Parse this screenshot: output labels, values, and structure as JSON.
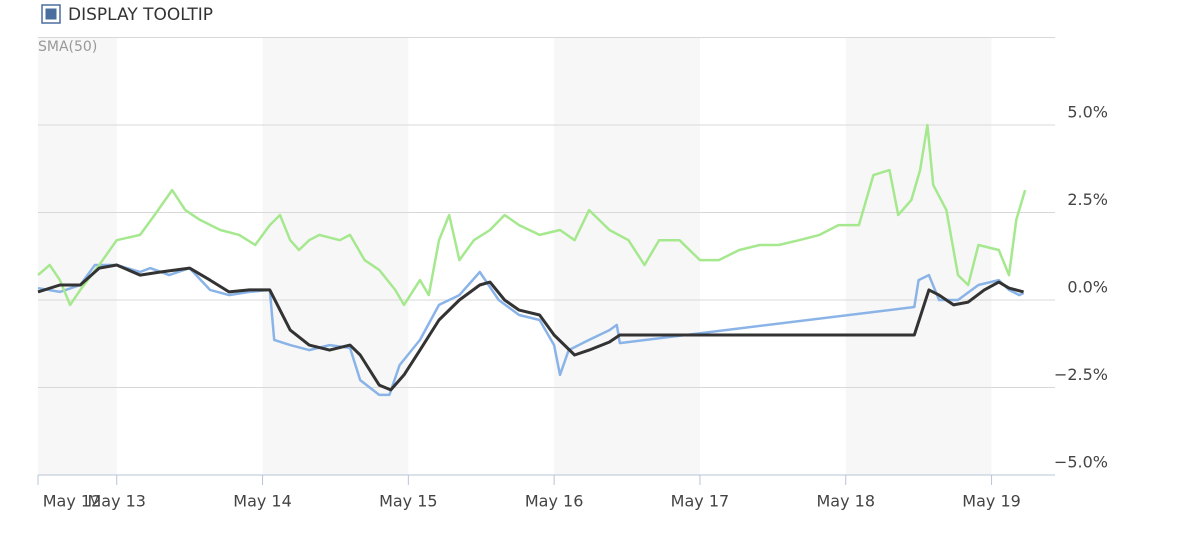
{
  "toolbar": {
    "checkbox_label": "DISPLAY TOOLTIP"
  },
  "chart_data": {
    "type": "line",
    "subtitle": "SMA(50)",
    "xlim": [
      12.46,
      19.25
    ],
    "xticks": [
      {
        "value": 12.46,
        "label": "May 12"
      },
      {
        "value": 13,
        "label": "May 13"
      },
      {
        "value": 14,
        "label": "May 14"
      },
      {
        "value": 15,
        "label": "May 15"
      },
      {
        "value": 16,
        "label": "May 16"
      },
      {
        "value": 17,
        "label": "May 17"
      },
      {
        "value": 18,
        "label": "May 18"
      },
      {
        "value": 19,
        "label": "May 19"
      }
    ],
    "ylim": [
      -5,
      7.5
    ],
    "yticks": [
      {
        "value": -5,
        "label": "−5.0%"
      },
      {
        "value": -2.5,
        "label": "−2.5%"
      },
      {
        "value": 0,
        "label": "0.0%"
      },
      {
        "value": 2.5,
        "label": "2.5%"
      },
      {
        "value": 5,
        "label": "5.0%"
      }
    ],
    "grid": true,
    "series": [
      {
        "color": "#8ab4e8",
        "x": [
          12.46,
          12.61,
          12.75,
          12.85,
          13.0,
          13.16,
          13.23,
          13.36,
          13.5,
          13.64,
          13.77,
          13.91,
          14.05,
          14.08,
          14.19,
          14.32,
          14.46,
          14.6,
          14.67,
          14.8,
          14.87,
          14.94,
          15.08,
          15.21,
          15.35,
          15.49,
          15.62,
          15.76,
          15.9,
          16.0,
          16.04,
          16.1,
          16.24,
          16.38,
          16.43,
          16.45,
          18.47,
          18.5,
          18.57,
          18.64,
          18.77,
          18.91,
          19.05,
          19.12,
          19.19,
          19.22
        ],
        "values": [
          0.34,
          0.23,
          0.43,
          1.0,
          1.0,
          0.8,
          0.91,
          0.71,
          0.91,
          0.29,
          0.14,
          0.23,
          0.29,
          -1.14,
          -1.29,
          -1.43,
          -1.29,
          -1.37,
          -2.29,
          -2.71,
          -2.71,
          -1.86,
          -1.14,
          -0.14,
          0.14,
          0.8,
          0,
          -0.43,
          -0.57,
          -1.29,
          -2.14,
          -1.43,
          -1.14,
          -0.86,
          -0.71,
          -1.23,
          -0.2,
          0.57,
          0.71,
          0,
          0,
          0.43,
          0.57,
          0.29,
          0.14,
          0.2
        ]
      },
      {
        "color": "#a5e88e",
        "x": [
          12.46,
          12.54,
          12.61,
          12.68,
          12.75,
          12.88,
          13.0,
          13.16,
          13.26,
          13.38,
          13.47,
          13.57,
          13.71,
          13.84,
          13.95,
          14.05,
          14.12,
          14.19,
          14.25,
          14.32,
          14.39,
          14.53,
          14.6,
          14.7,
          14.8,
          14.91,
          14.97,
          15.08,
          15.14,
          15.21,
          15.28,
          15.35,
          15.45,
          15.56,
          15.66,
          15.76,
          15.9,
          16.04,
          16.14,
          16.24,
          16.38,
          16.51,
          16.62,
          16.72,
          16.86,
          17.0,
          17.13,
          17.27,
          17.41,
          17.54,
          17.68,
          17.82,
          17.95,
          18.09,
          18.19,
          18.3,
          18.36,
          18.45,
          18.51,
          18.56,
          18.6,
          18.69,
          18.77,
          18.84,
          18.91,
          19.05,
          19.12,
          19.17,
          19.23
        ],
        "values": [
          0.71,
          1.0,
          0.57,
          -0.14,
          0.29,
          1.0,
          1.71,
          1.86,
          2.43,
          3.14,
          2.57,
          2.29,
          2.0,
          1.86,
          1.57,
          2.14,
          2.43,
          1.71,
          1.43,
          1.71,
          1.86,
          1.71,
          1.86,
          1.14,
          0.86,
          0.29,
          -0.14,
          0.57,
          0.14,
          1.71,
          2.43,
          1.14,
          1.71,
          2.0,
          2.43,
          2.14,
          1.86,
          2.0,
          1.71,
          2.57,
          2.0,
          1.71,
          1.0,
          1.71,
          1.71,
          1.14,
          1.14,
          1.43,
          1.57,
          1.57,
          1.71,
          1.86,
          2.14,
          2.14,
          3.57,
          3.71,
          2.43,
          2.86,
          3.71,
          5.0,
          3.29,
          2.57,
          0.71,
          0.43,
          1.57,
          1.43,
          0.71,
          2.29,
          3.14
        ]
      },
      {
        "color": "#333333",
        "x": [
          12.46,
          12.61,
          12.75,
          12.88,
          13.0,
          13.16,
          13.3,
          13.5,
          13.64,
          13.77,
          13.91,
          14.05,
          14.19,
          14.32,
          14.46,
          14.6,
          14.67,
          14.8,
          14.88,
          14.97,
          15.08,
          15.21,
          15.35,
          15.49,
          15.56,
          15.66,
          15.76,
          15.9,
          16.0,
          16.14,
          16.24,
          16.38,
          16.45,
          18.47,
          18.57,
          18.64,
          18.74,
          18.84,
          18.95,
          19.05,
          19.12,
          19.22
        ],
        "values": [
          0.23,
          0.43,
          0.43,
          0.91,
          1.0,
          0.71,
          0.8,
          0.91,
          0.57,
          0.23,
          0.29,
          0.29,
          -0.86,
          -1.29,
          -1.43,
          -1.29,
          -1.57,
          -2.43,
          -2.57,
          -2.14,
          -1.43,
          -0.57,
          0,
          0.43,
          0.51,
          0,
          -0.29,
          -0.43,
          -1.0,
          -1.57,
          -1.43,
          -1.2,
          -1.0,
          -1.0,
          0.29,
          0.14,
          -0.14,
          -0.06,
          0.29,
          0.51,
          0.34,
          0.23
        ]
      }
    ]
  }
}
